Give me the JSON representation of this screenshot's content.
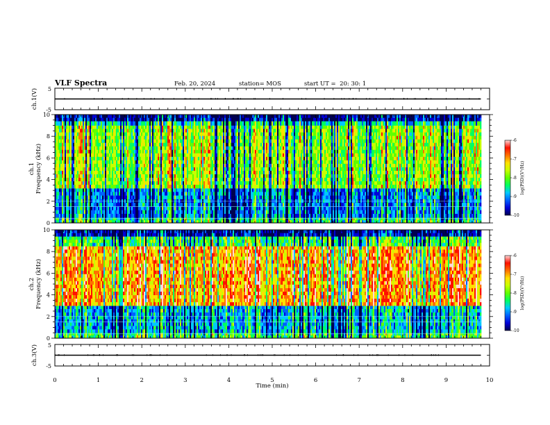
{
  "header": {
    "title": "VLF Spectra",
    "date": "Feb. 20, 2024",
    "station": "station= MOS",
    "start": "start UT =  20: 30: 1"
  },
  "colors": {
    "spectrum_scale": [
      "#000050",
      "#0000d8",
      "#0060ff",
      "#00c8ff",
      "#00ff60",
      "#60ff00",
      "#c8ff00",
      "#ffe000",
      "#ff7000",
      "#ff1000",
      "#ffd8d8"
    ]
  },
  "chart_data": [
    {
      "type": "line",
      "panel": "ch1-voltage",
      "ylabel": "ch.1(V)",
      "ylim": [
        -5,
        5
      ],
      "yticks": [
        "5",
        "-5"
      ],
      "x": [
        0,
        9.8
      ],
      "series": [
        {
          "values": [
            0.0,
            0.0
          ]
        }
      ]
    },
    {
      "type": "heatmap",
      "panel": "ch1-spectrogram",
      "ylabel": "ch.1 Frequency (kHz)",
      "ylim": [
        0,
        10
      ],
      "yticks": [
        "0",
        "2",
        "4",
        "6",
        "8",
        "10"
      ],
      "xlim": [
        0,
        10
      ],
      "data_end_min": 9.8,
      "colorbar": {
        "label": "log(PSD)(V²/Hz)",
        "range": [
          -10,
          -6
        ],
        "ticks": [
          "-6",
          "-7",
          "-8",
          "-9",
          "-10"
        ]
      },
      "bands": [
        {
          "f_khz": [
            0,
            0.5
          ],
          "level": -8.4
        },
        {
          "f_khz": [
            0.5,
            3.2
          ],
          "level": -9.1
        },
        {
          "f_khz": [
            3.2,
            9.0
          ],
          "level": -7.9
        },
        {
          "f_khz": [
            9.0,
            9.4
          ],
          "level": -8.6
        },
        {
          "f_khz": [
            9.4,
            10
          ],
          "level": -9.8
        }
      ],
      "lines_khz": [
        0.4,
        1.5,
        2.0
      ]
    },
    {
      "type": "heatmap",
      "panel": "ch2-spectrogram",
      "ylabel": "ch.2 Frequency (kHz)",
      "ylim": [
        0,
        10
      ],
      "yticks": [
        "0",
        "2",
        "4",
        "6",
        "8",
        "10"
      ],
      "xlim": [
        0,
        10
      ],
      "data_end_min": 9.8,
      "colorbar": {
        "label": "log(PSD)(V²/Hz)",
        "range": [
          -10,
          -6
        ],
        "ticks": [
          "-6",
          "-7",
          "-8",
          "-9",
          "-10"
        ]
      },
      "bands": [
        {
          "f_khz": [
            0,
            0.5
          ],
          "level": -8.3
        },
        {
          "f_khz": [
            0.5,
            3.0
          ],
          "level": -8.9
        },
        {
          "f_khz": [
            3.0,
            8.5
          ],
          "level": -7.0
        },
        {
          "f_khz": [
            8.5,
            9.4
          ],
          "level": -8.3
        },
        {
          "f_khz": [
            9.4,
            10
          ],
          "level": -9.7
        }
      ],
      "lines_khz": [
        0.4,
        1.5,
        2.0
      ]
    },
    {
      "type": "line",
      "panel": "ch3-voltage",
      "ylabel": "ch.3(V)",
      "ylim": [
        -5,
        5
      ],
      "yticks": [
        "5",
        "-5"
      ],
      "x": [
        0,
        9.8
      ],
      "series": [
        {
          "values": [
            0.0,
            0.0
          ]
        }
      ]
    }
  ],
  "xaxis": {
    "label": "Time (min)",
    "ticks": [
      "0",
      "1",
      "2",
      "3",
      "4",
      "5",
      "6",
      "7",
      "8",
      "9",
      "10"
    ],
    "range": [
      0,
      10
    ]
  }
}
